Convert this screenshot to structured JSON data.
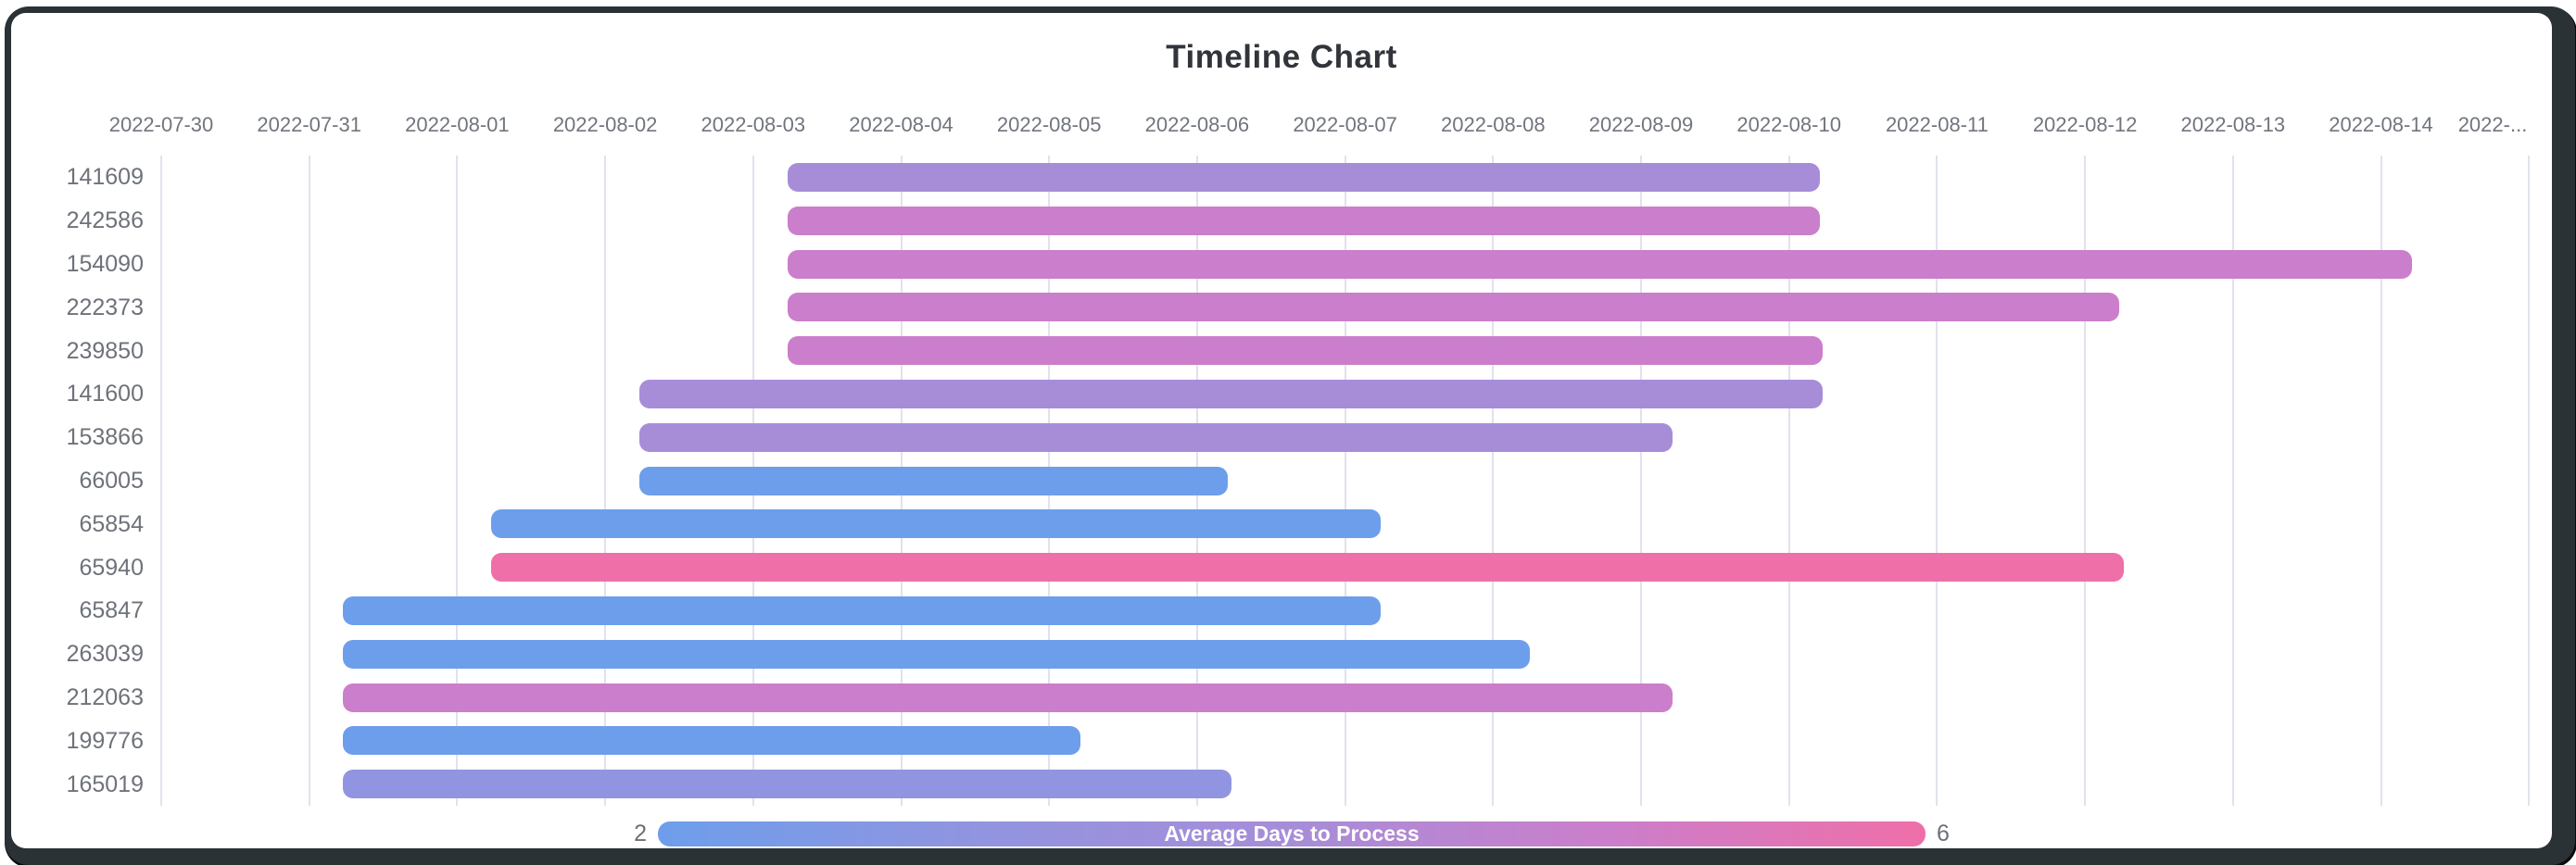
{
  "palette": {
    "frame": "#2b3236",
    "card_background": "#ffffff",
    "gridline": "#dfe3ee",
    "axis_label": "#71757d",
    "title_text": "#31353b",
    "legend_value_text": "#6b7078",
    "days_2_blue": "#6d9eeb",
    "days_3_periwinkle": "#9194e0",
    "days_4_purple": "#a78dd8",
    "days_5_orchid": "#cb7ecb",
    "days_6_pink": "#ef6fa8"
  },
  "chart_data": {
    "type": "bar",
    "subtype": "horizontal_timeline_gantt",
    "title": "Timeline Chart",
    "grid": true,
    "x_axis": {
      "start_date": "2022-07-30",
      "interval_days": 1,
      "labels": [
        "2022-07-30",
        "2022-07-31",
        "2022-08-01",
        "2022-08-02",
        "2022-08-03",
        "2022-08-04",
        "2022-08-05",
        "2022-08-06",
        "2022-08-07",
        "2022-08-08",
        "2022-08-09",
        "2022-08-10",
        "2022-08-11",
        "2022-08-12",
        "2022-08-13",
        "2022-08-14",
        "2022-..."
      ]
    },
    "rows": [
      {
        "id": "141609",
        "start": "2022-08-03",
        "end": "2022-08-10",
        "duration_days": 7,
        "avg_days_to_process": 4,
        "color": "#a78dd8",
        "start_day_offset": 4.23,
        "end_day_offset": 11.21
      },
      {
        "id": "242586",
        "start": "2022-08-03",
        "end": "2022-08-10",
        "duration_days": 7,
        "avg_days_to_process": 5,
        "color": "#cb7ecb",
        "start_day_offset": 4.23,
        "end_day_offset": 11.21
      },
      {
        "id": "154090",
        "start": "2022-08-03",
        "end": "2022-08-14",
        "duration_days": 11,
        "avg_days_to_process": 5,
        "color": "#cb7ecb",
        "start_day_offset": 4.23,
        "end_day_offset": 15.21
      },
      {
        "id": "222373",
        "start": "2022-08-03",
        "end": "2022-08-12",
        "duration_days": 9,
        "avg_days_to_process": 5,
        "color": "#cb7ecb",
        "start_day_offset": 4.23,
        "end_day_offset": 13.23
      },
      {
        "id": "239850",
        "start": "2022-08-03",
        "end": "2022-08-10",
        "duration_days": 7,
        "avg_days_to_process": 5,
        "color": "#cb7ecb",
        "start_day_offset": 4.23,
        "end_day_offset": 11.23
      },
      {
        "id": "141600",
        "start": "2022-08-02",
        "end": "2022-08-10",
        "duration_days": 8,
        "avg_days_to_process": 4,
        "color": "#a78dd8",
        "start_day_offset": 3.23,
        "end_day_offset": 11.23
      },
      {
        "id": "153866",
        "start": "2022-08-02",
        "end": "2022-08-09",
        "duration_days": 7,
        "avg_days_to_process": 4,
        "color": "#a78dd8",
        "start_day_offset": 3.23,
        "end_day_offset": 10.21
      },
      {
        "id": "66005",
        "start": "2022-08-02",
        "end": "2022-08-06",
        "duration_days": 4,
        "avg_days_to_process": 2,
        "color": "#6d9eeb",
        "start_day_offset": 3.23,
        "end_day_offset": 7.21
      },
      {
        "id": "65854",
        "start": "2022-08-01",
        "end": "2022-08-07",
        "duration_days": 6,
        "avg_days_to_process": 2,
        "color": "#6d9eeb",
        "start_day_offset": 2.23,
        "end_day_offset": 8.24
      },
      {
        "id": "65940",
        "start": "2022-08-01",
        "end": "2022-08-12",
        "duration_days": 11,
        "avg_days_to_process": 6,
        "color": "#ef6fa8",
        "start_day_offset": 2.23,
        "end_day_offset": 13.26
      },
      {
        "id": "65847",
        "start": "2022-07-31",
        "end": "2022-08-07",
        "duration_days": 7,
        "avg_days_to_process": 2,
        "color": "#6d9eeb",
        "start_day_offset": 1.23,
        "end_day_offset": 8.24
      },
      {
        "id": "263039",
        "start": "2022-07-31",
        "end": "2022-08-08",
        "duration_days": 8,
        "avg_days_to_process": 2,
        "color": "#6d9eeb",
        "start_day_offset": 1.23,
        "end_day_offset": 9.25
      },
      {
        "id": "212063",
        "start": "2022-07-31",
        "end": "2022-08-09",
        "duration_days": 9,
        "avg_days_to_process": 5,
        "color": "#cb7ecb",
        "start_day_offset": 1.23,
        "end_day_offset": 10.21
      },
      {
        "id": "199776",
        "start": "2022-07-31",
        "end": "2022-08-05",
        "duration_days": 5,
        "avg_days_to_process": 2,
        "color": "#6d9eeb",
        "start_day_offset": 1.23,
        "end_day_offset": 6.21
      },
      {
        "id": "165019",
        "start": "2022-07-31",
        "end": "2022-08-06",
        "duration_days": 6,
        "avg_days_to_process": 3,
        "color": "#9194e0",
        "start_day_offset": 1.23,
        "end_day_offset": 7.23
      }
    ],
    "legend": {
      "label": "Average Days to Process",
      "min": 2,
      "max": 6,
      "min_label": "2",
      "max_label": "6",
      "position": "bottom-center",
      "gradient": [
        "#6d9eeb",
        "#9194e0",
        "#a78dd8",
        "#cb7ecb",
        "#ef6fa8"
      ]
    }
  }
}
